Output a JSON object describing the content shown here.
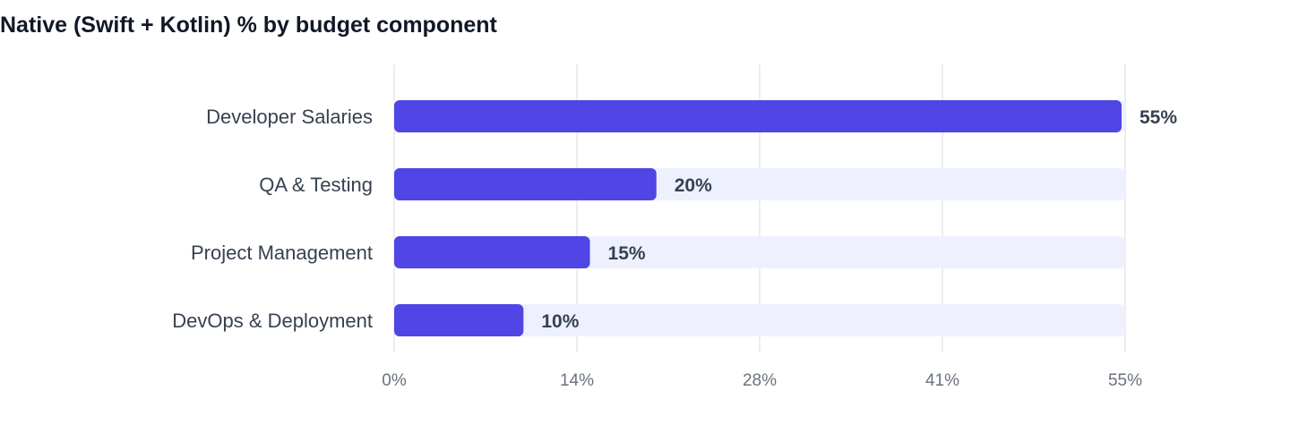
{
  "title": "Native (Swift + Kotlin) % by budget component",
  "colors": {
    "bar": "#5046e5",
    "track": "#eef1fd",
    "grid": "#e5e7eb"
  },
  "chart_data": {
    "type": "bar",
    "orientation": "horizontal",
    "title": "Native (Swift + Kotlin) % by budget component",
    "categories": [
      "Developer Salaries",
      "QA & Testing",
      "Project Management",
      "DevOps & Deployment"
    ],
    "values": [
      55,
      20,
      15,
      10
    ],
    "value_labels": [
      "55%",
      "20%",
      "15%",
      "10%"
    ],
    "xlim": [
      0,
      55
    ],
    "ticks": [
      0,
      13.75,
      27.5,
      41.25,
      55
    ],
    "tick_labels": [
      "0%",
      "14%",
      "28%",
      "41%",
      "55%"
    ],
    "grid": true,
    "legend": "none"
  }
}
